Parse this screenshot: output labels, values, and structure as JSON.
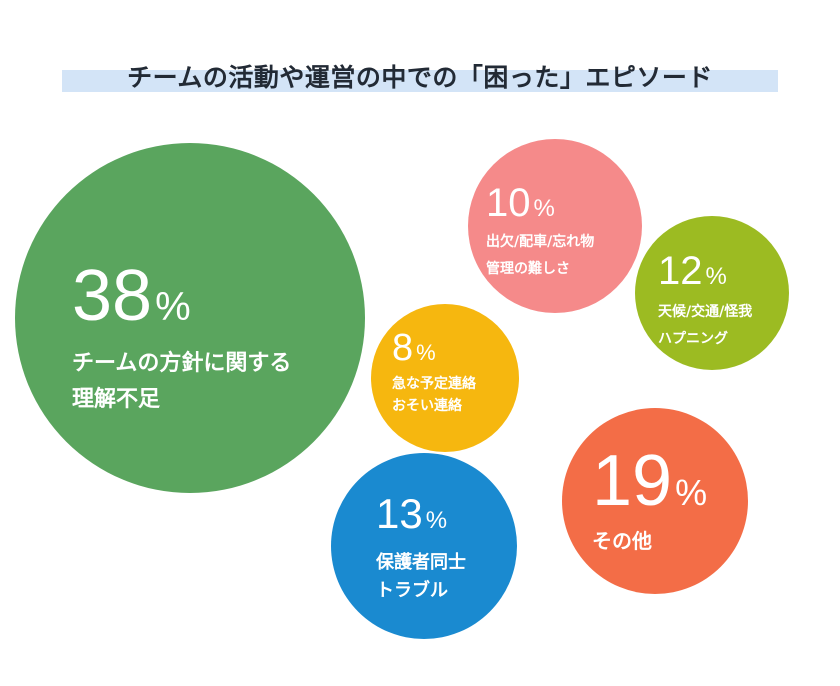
{
  "chart_data": {
    "type": "bubble",
    "title": "チームの活動や運営の中での「困った」エピソード",
    "unit": "%",
    "items": [
      {
        "value": 38,
        "label_lines": [
          "チームの方針に関する",
          "理解不足"
        ],
        "color": "#5aa55e"
      },
      {
        "value": 10,
        "label_lines": [
          "出欠/配車/忘れ物",
          "管理の難しさ"
        ],
        "color": "#f58a8a"
      },
      {
        "value": 12,
        "label_lines": [
          "天候/交通/怪我",
          "ハプニング"
        ],
        "color": "#9cbb22"
      },
      {
        "value": 8,
        "label_lines": [
          "急な予定連絡",
          "おそい連絡"
        ],
        "color": "#f6b70f"
      },
      {
        "value": 13,
        "label_lines": [
          "保護者同士",
          "トラブル"
        ],
        "color": "#1a8ad0"
      },
      {
        "value": 19,
        "label_lines": [
          "その他"
        ],
        "color": "#f36d47"
      }
    ]
  }
}
